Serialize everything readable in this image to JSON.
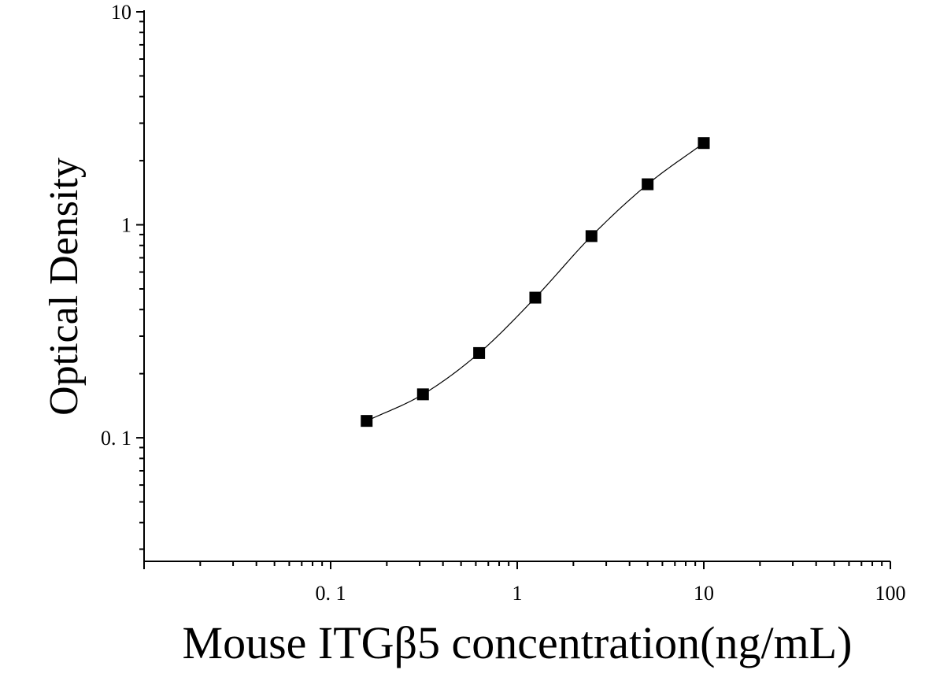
{
  "chart_data": {
    "type": "scatter",
    "title": "",
    "xlabel": "Mouse ITGβ5 concentration(ng/mL)",
    "ylabel": "Optical Density",
    "x_scale": "log",
    "y_scale": "log",
    "xlim": [
      0.01,
      100
    ],
    "ylim": [
      0.0263,
      10
    ],
    "x_ticks": [
      {
        "value": 0.1,
        "label": "0. 1"
      },
      {
        "value": 1,
        "label": "1"
      },
      {
        "value": 10,
        "label": "10"
      },
      {
        "value": 100,
        "label": "100"
      }
    ],
    "y_ticks": [
      {
        "value": 0.1,
        "label": "0. 1"
      },
      {
        "value": 1,
        "label": "1"
      },
      {
        "value": 10,
        "label": "10"
      }
    ],
    "grid": false,
    "legend": "none",
    "marker": "square",
    "fit_line": true,
    "series": [
      {
        "x": [
          0.156,
          0.3125,
          0.625,
          1.25,
          2.5,
          5,
          10
        ],
        "y": [
          0.12,
          0.16,
          0.25,
          0.455,
          0.885,
          1.55,
          2.42
        ]
      }
    ]
  }
}
